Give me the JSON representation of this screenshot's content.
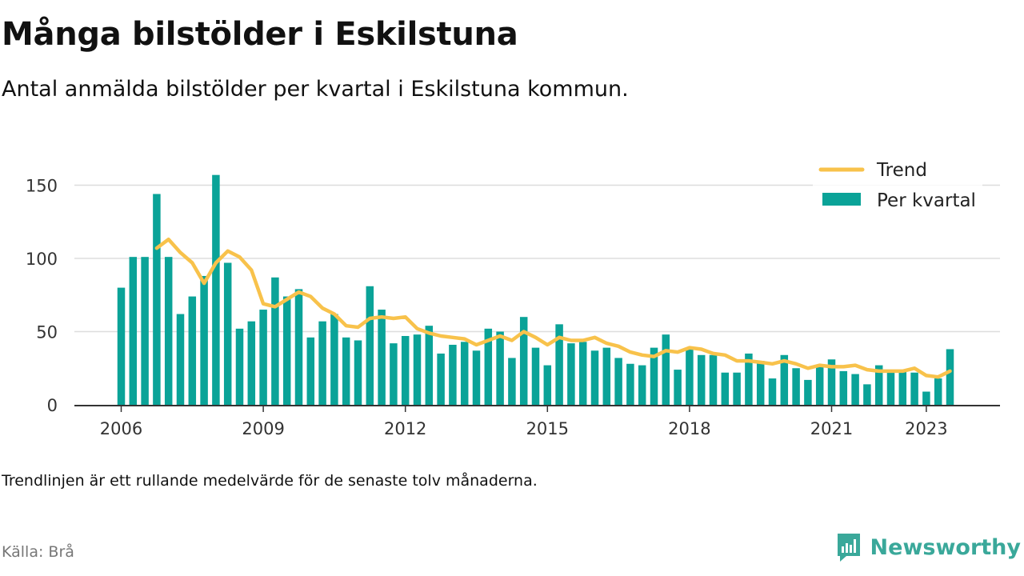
{
  "header": {
    "title": "Många bilstölder i Eskilstuna",
    "subtitle": "Antal anmälda bilstölder per kvartal i Eskilstuna kommun."
  },
  "footer": {
    "note": "Trendlinjen är ett rullande medelvärde för de senaste tolv månaderna.",
    "source": "Källa: Brå",
    "brand": "Newsworthy",
    "brand_icon": "newsworthy-logo-icon"
  },
  "colors": {
    "bar": "#0aa398",
    "trend": "#f8c24b",
    "grid": "#dddddd",
    "axis": "#333333",
    "brand": "#3aa89a"
  },
  "chart_data": {
    "type": "bar",
    "xlim": [
      "2006-Q1",
      "2023-Q3"
    ],
    "ylim": [
      0,
      160
    ],
    "grid": true,
    "legend_position": "top-right",
    "y_ticks": [
      0,
      50,
      100,
      150
    ],
    "x_ticks": [
      {
        "label": "2006",
        "index": 0
      },
      {
        "label": "2009",
        "index": 12
      },
      {
        "label": "2012",
        "index": 24
      },
      {
        "label": "2015",
        "index": 36
      },
      {
        "label": "2018",
        "index": 48
      },
      {
        "label": "2021",
        "index": 60
      },
      {
        "label": "2023",
        "index": 68
      }
    ],
    "categories": [
      "2006-Q1",
      "2006-Q2",
      "2006-Q3",
      "2006-Q4",
      "2007-Q1",
      "2007-Q2",
      "2007-Q3",
      "2007-Q4",
      "2008-Q1",
      "2008-Q2",
      "2008-Q3",
      "2008-Q4",
      "2009-Q1",
      "2009-Q2",
      "2009-Q3",
      "2009-Q4",
      "2010-Q1",
      "2010-Q2",
      "2010-Q3",
      "2010-Q4",
      "2011-Q1",
      "2011-Q2",
      "2011-Q3",
      "2011-Q4",
      "2012-Q1",
      "2012-Q2",
      "2012-Q3",
      "2012-Q4",
      "2013-Q1",
      "2013-Q2",
      "2013-Q3",
      "2013-Q4",
      "2014-Q1",
      "2014-Q2",
      "2014-Q3",
      "2014-Q4",
      "2015-Q1",
      "2015-Q2",
      "2015-Q3",
      "2015-Q4",
      "2016-Q1",
      "2016-Q2",
      "2016-Q3",
      "2016-Q4",
      "2017-Q1",
      "2017-Q2",
      "2017-Q3",
      "2017-Q4",
      "2018-Q1",
      "2018-Q2",
      "2018-Q3",
      "2018-Q4",
      "2019-Q1",
      "2019-Q2",
      "2019-Q3",
      "2019-Q4",
      "2020-Q1",
      "2020-Q2",
      "2020-Q3",
      "2020-Q4",
      "2021-Q1",
      "2021-Q2",
      "2021-Q3",
      "2021-Q4",
      "2022-Q1",
      "2022-Q2",
      "2022-Q3",
      "2022-Q4",
      "2023-Q1",
      "2023-Q2",
      "2023-Q3"
    ],
    "series": [
      {
        "name": "Per kvartal",
        "kind": "bar",
        "values": [
          80,
          101,
          101,
          144,
          101,
          62,
          74,
          88,
          157,
          97,
          52,
          57,
          65,
          87,
          74,
          79,
          46,
          57,
          62,
          46,
          44,
          81,
          65,
          42,
          47,
          48,
          54,
          35,
          41,
          43,
          37,
          52,
          50,
          32,
          60,
          39,
          27,
          55,
          42,
          43,
          37,
          39,
          32,
          28,
          27,
          39,
          48,
          24,
          38,
          34,
          34,
          22,
          22,
          35,
          30,
          18,
          34,
          25,
          17,
          27,
          31,
          23,
          21,
          14,
          27,
          24,
          23,
          22,
          9,
          18,
          38
        ]
      },
      {
        "name": "Trend",
        "kind": "line",
        "values": [
          null,
          null,
          null,
          107,
          113,
          104,
          97,
          83,
          97,
          105,
          101,
          92,
          69,
          67,
          72,
          77,
          74,
          66,
          62,
          54,
          53,
          59,
          60,
          59,
          60,
          52,
          49,
          47,
          46,
          45,
          41,
          44,
          47,
          44,
          50,
          46,
          41,
          46,
          44,
          44,
          46,
          42,
          40,
          36,
          34,
          33,
          37,
          36,
          39,
          38,
          35,
          34,
          30,
          30,
          29,
          28,
          30,
          28,
          25,
          27,
          26,
          26,
          27,
          24,
          23,
          23,
          23,
          25,
          20,
          19,
          23
        ]
      }
    ]
  }
}
